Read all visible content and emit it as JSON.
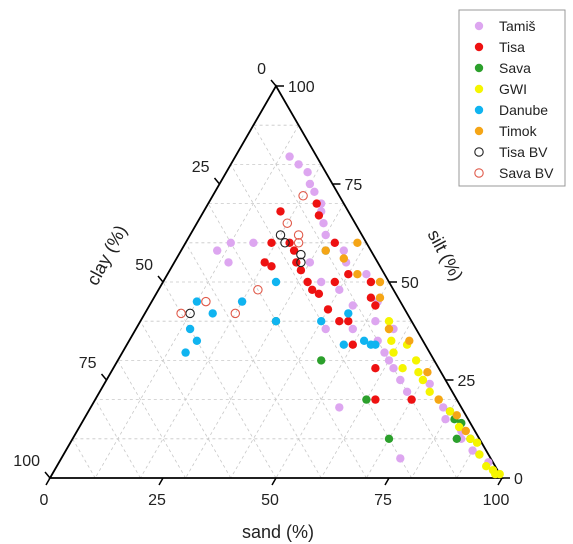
{
  "chart_data": {
    "type": "scatter",
    "subtype": "ternary",
    "title": "",
    "axes": {
      "sand": {
        "label": "sand (%)",
        "ticks": [
          0,
          25,
          50,
          75,
          100
        ],
        "range": [
          0,
          100
        ]
      },
      "silt": {
        "label": "silt (%)",
        "ticks": [
          0,
          25,
          50,
          75,
          100
        ],
        "range": [
          0,
          100
        ]
      },
      "clay": {
        "label": "clay (%)",
        "ticks": [
          0,
          25,
          50,
          75,
          100
        ],
        "range": [
          0,
          100
        ]
      }
    },
    "grid": true,
    "legend_position": "top-right",
    "series": [
      {
        "name": "Tamiš",
        "color": "#dda6f0",
        "marker": "filled-circle",
        "points": [
          {
            "sand": 35,
            "silt": 50,
            "clay": 15
          },
          {
            "sand": 40,
            "silt": 48,
            "clay": 12
          },
          {
            "sand": 38,
            "silt": 55,
            "clay": 7
          },
          {
            "sand": 45,
            "silt": 44,
            "clay": 11
          },
          {
            "sand": 30,
            "silt": 62,
            "clay": 8
          },
          {
            "sand": 33,
            "silt": 60,
            "clay": 7
          },
          {
            "sand": 28,
            "silt": 65,
            "clay": 7
          },
          {
            "sand": 25,
            "silt": 70,
            "clay": 5
          },
          {
            "sand": 22,
            "silt": 73,
            "clay": 5
          },
          {
            "sand": 26,
            "silt": 68,
            "clay": 6
          },
          {
            "sand": 48,
            "silt": 38,
            "clay": 14
          },
          {
            "sand": 52,
            "silt": 40,
            "clay": 8
          },
          {
            "sand": 55,
            "silt": 35,
            "clay": 10
          },
          {
            "sand": 60,
            "silt": 30,
            "clay": 10
          },
          {
            "sand": 58,
            "silt": 32,
            "clay": 10
          },
          {
            "sand": 65,
            "silt": 25,
            "clay": 10
          },
          {
            "sand": 70,
            "silt": 20,
            "clay": 10
          },
          {
            "sand": 80,
            "silt": 15,
            "clay": 5
          },
          {
            "sand": 85,
            "silt": 12,
            "clay": 3
          },
          {
            "sand": 90,
            "silt": 7,
            "clay": 3
          },
          {
            "sand": 92,
            "silt": 6,
            "clay": 2
          },
          {
            "sand": 95,
            "silt": 4,
            "clay": 1
          },
          {
            "sand": 20,
            "silt": 75,
            "clay": 5
          },
          {
            "sand": 18,
            "silt": 78,
            "clay": 4
          },
          {
            "sand": 15,
            "silt": 80,
            "clay": 5
          },
          {
            "sand": 12,
            "silt": 82,
            "clay": 6
          },
          {
            "sand": 42,
            "silt": 38,
            "clay": 20
          },
          {
            "sand": 30,
            "silt": 55,
            "clay": 15
          },
          {
            "sand": 36,
            "silt": 58,
            "clay": 6
          },
          {
            "sand": 62,
            "silt": 28,
            "clay": 10
          },
          {
            "sand": 68,
            "silt": 22,
            "clay": 10
          },
          {
            "sand": 57,
            "silt": 38,
            "clay": 5
          },
          {
            "sand": 50,
            "silt": 45,
            "clay": 5
          },
          {
            "sand": 55,
            "silt": 18,
            "clay": 27
          },
          {
            "sand": 75,
            "silt": 5,
            "clay": 20
          },
          {
            "sand": 44,
            "silt": 52,
            "clay": 4
          },
          {
            "sand": 10,
            "silt": 60,
            "clay": 30
          },
          {
            "sand": 8,
            "silt": 58,
            "clay": 34
          },
          {
            "sand": 15,
            "silt": 60,
            "clay": 25
          },
          {
            "sand": 12,
            "silt": 55,
            "clay": 33
          },
          {
            "sand": 20,
            "silt": 45,
            "clay": 35
          },
          {
            "sand": 78,
            "silt": 18,
            "clay": 4
          },
          {
            "sand": 86,
            "silt": 10,
            "clay": 4
          },
          {
            "sand": 72,
            "silt": 24,
            "clay": 4
          }
        ]
      },
      {
        "name": "Tisa",
        "color": "#ee1111",
        "marker": "filled-circle",
        "points": [
          {
            "sand": 17,
            "silt": 68,
            "clay": 15
          },
          {
            "sand": 26,
            "silt": 67,
            "clay": 7
          },
          {
            "sand": 19,
            "silt": 60,
            "clay": 21
          },
          {
            "sand": 23,
            "silt": 60,
            "clay": 17
          },
          {
            "sand": 25,
            "silt": 58,
            "clay": 17
          },
          {
            "sand": 27,
            "silt": 55,
            "clay": 18
          },
          {
            "sand": 29,
            "silt": 53,
            "clay": 18
          },
          {
            "sand": 32,
            "silt": 50,
            "clay": 18
          },
          {
            "sand": 34,
            "silt": 48,
            "clay": 18
          },
          {
            "sand": 36,
            "silt": 47,
            "clay": 17
          },
          {
            "sand": 38,
            "silt": 50,
            "clay": 12
          },
          {
            "sand": 40,
            "silt": 52,
            "clay": 8
          },
          {
            "sand": 44,
            "silt": 40,
            "clay": 16
          },
          {
            "sand": 46,
            "silt": 40,
            "clay": 14
          },
          {
            "sand": 48,
            "silt": 46,
            "clay": 6
          },
          {
            "sand": 50,
            "silt": 44,
            "clay": 6
          },
          {
            "sand": 50,
            "silt": 34,
            "clay": 16
          },
          {
            "sand": 58,
            "silt": 28,
            "clay": 14
          },
          {
            "sand": 62,
            "silt": 20,
            "clay": 18
          },
          {
            "sand": 70,
            "silt": 20,
            "clay": 10
          },
          {
            "sand": 20,
            "silt": 55,
            "clay": 25
          },
          {
            "sand": 22,
            "silt": 54,
            "clay": 24
          },
          {
            "sand": 40,
            "silt": 43,
            "clay": 17
          },
          {
            "sand": 46,
            "silt": 50,
            "clay": 4
          },
          {
            "sand": 33,
            "silt": 60,
            "clay": 7
          },
          {
            "sand": 24,
            "silt": 70,
            "clay": 6
          }
        ]
      },
      {
        "name": "Sava",
        "color": "#2ca02c",
        "marker": "filled-circle",
        "points": [
          {
            "sand": 30,
            "silt": 40,
            "clay": 30
          },
          {
            "sand": 45,
            "silt": 30,
            "clay": 25
          },
          {
            "sand": 60,
            "silt": 20,
            "clay": 20
          },
          {
            "sand": 70,
            "silt": 10,
            "clay": 20
          },
          {
            "sand": 80,
            "silt": 17,
            "clay": 3
          },
          {
            "sand": 82,
            "silt": 15,
            "clay": 3
          },
          {
            "sand": 85,
            "silt": 10,
            "clay": 5
          },
          {
            "sand": 88,
            "silt": 10,
            "clay": 2
          },
          {
            "sand": 84,
            "silt": 14,
            "clay": 2
          }
        ]
      },
      {
        "name": "GWI",
        "color": "#f5f500",
        "marker": "filled-circle",
        "points": [
          {
            "sand": 55,
            "silt": 40,
            "clay": 5
          },
          {
            "sand": 58,
            "silt": 35,
            "clay": 7
          },
          {
            "sand": 60,
            "silt": 32,
            "clay": 8
          },
          {
            "sand": 64,
            "silt": 28,
            "clay": 8
          },
          {
            "sand": 68,
            "silt": 27,
            "clay": 5
          },
          {
            "sand": 70,
            "silt": 25,
            "clay": 5
          },
          {
            "sand": 73,
            "silt": 22,
            "clay": 5
          },
          {
            "sand": 76,
            "silt": 20,
            "clay": 4
          },
          {
            "sand": 80,
            "silt": 17,
            "clay": 3
          },
          {
            "sand": 84,
            "silt": 13,
            "clay": 3
          },
          {
            "sand": 88,
            "silt": 10,
            "clay": 2
          },
          {
            "sand": 90,
            "silt": 9,
            "clay": 1
          },
          {
            "sand": 92,
            "silt": 6,
            "clay": 2
          },
          {
            "sand": 95,
            "silt": 3,
            "clay": 2
          },
          {
            "sand": 97,
            "silt": 2,
            "clay": 1
          },
          {
            "sand": 98,
            "silt": 1,
            "clay": 1
          },
          {
            "sand": 99,
            "silt": 1,
            "clay": 0
          },
          {
            "sand": 56,
            "silt": 38,
            "clay": 6
          },
          {
            "sand": 62,
            "silt": 34,
            "clay": 4
          },
          {
            "sand": 66,
            "silt": 30,
            "clay": 4
          }
        ]
      },
      {
        "name": "Danube",
        "color": "#10b4f0",
        "marker": "filled-circle",
        "points": [
          {
            "sand": 10,
            "silt": 45,
            "clay": 45
          },
          {
            "sand": 12,
            "silt": 38,
            "clay": 50
          },
          {
            "sand": 14,
            "silt": 32,
            "clay": 54
          },
          {
            "sand": 15,
            "silt": 35,
            "clay": 50
          },
          {
            "sand": 20,
            "silt": 45,
            "clay": 35
          },
          {
            "sand": 25,
            "silt": 50,
            "clay": 25
          },
          {
            "sand": 30,
            "silt": 40,
            "clay": 30
          },
          {
            "sand": 40,
            "silt": 40,
            "clay": 20
          },
          {
            "sand": 52,
            "silt": 35,
            "clay": 13
          },
          {
            "sand": 54,
            "silt": 34,
            "clay": 12
          },
          {
            "sand": 55,
            "silt": 34,
            "clay": 11
          },
          {
            "sand": 48,
            "silt": 34,
            "clay": 18
          },
          {
            "sand": 15,
            "silt": 42,
            "clay": 43
          },
          {
            "sand": 32,
            "silt": 58,
            "clay": 10
          },
          {
            "sand": 45,
            "silt": 42,
            "clay": 13
          }
        ]
      },
      {
        "name": "Timok",
        "color": "#f5a516",
        "marker": "filled-circle",
        "points": [
          {
            "sand": 32,
            "silt": 58,
            "clay": 10
          },
          {
            "sand": 37,
            "silt": 56,
            "clay": 7
          },
          {
            "sand": 42,
            "silt": 52,
            "clay": 6
          },
          {
            "sand": 50,
            "silt": 46,
            "clay": 4
          },
          {
            "sand": 56,
            "silt": 38,
            "clay": 6
          },
          {
            "sand": 62,
            "silt": 35,
            "clay": 3
          },
          {
            "sand": 70,
            "silt": 27,
            "clay": 3
          },
          {
            "sand": 76,
            "silt": 20,
            "clay": 4
          },
          {
            "sand": 82,
            "silt": 16,
            "clay": 2
          },
          {
            "sand": 86,
            "silt": 12,
            "clay": 2
          },
          {
            "sand": 38,
            "silt": 60,
            "clay": 2
          },
          {
            "sand": 48,
            "silt": 50,
            "clay": 2
          }
        ]
      },
      {
        "name": "Tisa BV",
        "color": "#222222",
        "marker": "open-circle",
        "points": [
          {
            "sand": 10,
            "silt": 42,
            "clay": 48
          },
          {
            "sand": 20,
            "silt": 62,
            "clay": 18
          },
          {
            "sand": 22,
            "silt": 60,
            "clay": 18
          },
          {
            "sand": 27,
            "silt": 57,
            "clay": 16
          },
          {
            "sand": 28,
            "silt": 55,
            "clay": 17
          }
        ]
      },
      {
        "name": "Sava BV",
        "color": "#e05a4a",
        "marker": "open-circle",
        "points": [
          {
            "sand": 8,
            "silt": 42,
            "clay": 50
          },
          {
            "sand": 12,
            "silt": 45,
            "clay": 43
          },
          {
            "sand": 20,
            "silt": 42,
            "clay": 38
          },
          {
            "sand": 22,
            "silt": 48,
            "clay": 30
          },
          {
            "sand": 20,
            "silt": 65,
            "clay": 15
          },
          {
            "sand": 24,
            "silt": 62,
            "clay": 14
          },
          {
            "sand": 20,
            "silt": 72,
            "clay": 8
          },
          {
            "sand": 25,
            "silt": 60,
            "clay": 15
          }
        ]
      }
    ]
  }
}
